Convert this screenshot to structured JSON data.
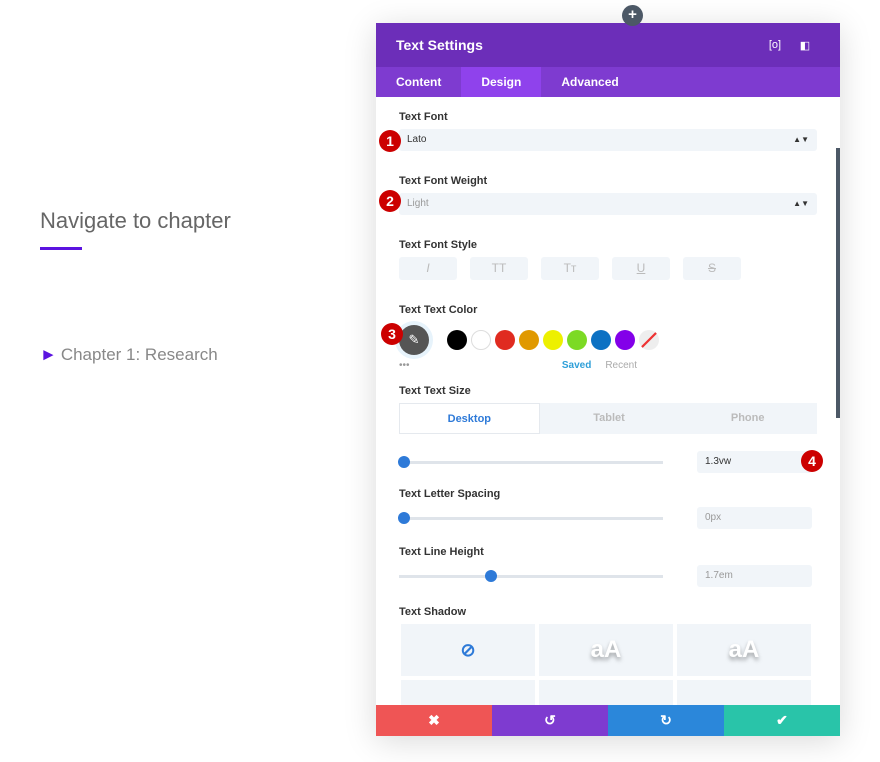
{
  "page": {
    "title": "Navigate to chapter",
    "chapter": "Chapter 1: Research",
    "chapter_icon": "triangle-right-icon",
    "accent": "#5b13e0"
  },
  "modal": {
    "title": "Text Settings",
    "tabs": [
      "Content",
      "Design",
      "Advanced"
    ],
    "active_tab": "Design",
    "font": {
      "label": "Text Font",
      "value": "Lato"
    },
    "weight": {
      "label": "Text Font Weight",
      "value": "Light"
    },
    "style": {
      "label": "Text Font Style",
      "buttons": [
        "I",
        "TT",
        "Tт",
        "U",
        "S"
      ]
    },
    "color": {
      "label": "Text Text Color",
      "swatches": [
        "#000000",
        "#ffffff",
        "#e02b20",
        "#e09900",
        "#edf000",
        "#7cda24",
        "#0c71c3",
        "#8300e9"
      ],
      "saved": "Saved",
      "recent": "Recent",
      "more": "•••"
    },
    "size": {
      "label": "Text Text Size",
      "devices": [
        "Desktop",
        "Tablet",
        "Phone"
      ],
      "value": "1.3vw",
      "slider_percent": 0
    },
    "letter_spacing": {
      "label": "Text Letter Spacing",
      "value": "0px",
      "slider_percent": 0
    },
    "line_height": {
      "label": "Text Line Height",
      "value": "1.7em",
      "slider_percent": 35
    },
    "shadow": {
      "label": "Text Shadow",
      "preset": "aA"
    },
    "footer_colors": [
      "#ef5555",
      "#7e3bd0",
      "#2b87da",
      "#29c4a9"
    ]
  },
  "badges": [
    "1",
    "2",
    "3",
    "4"
  ]
}
